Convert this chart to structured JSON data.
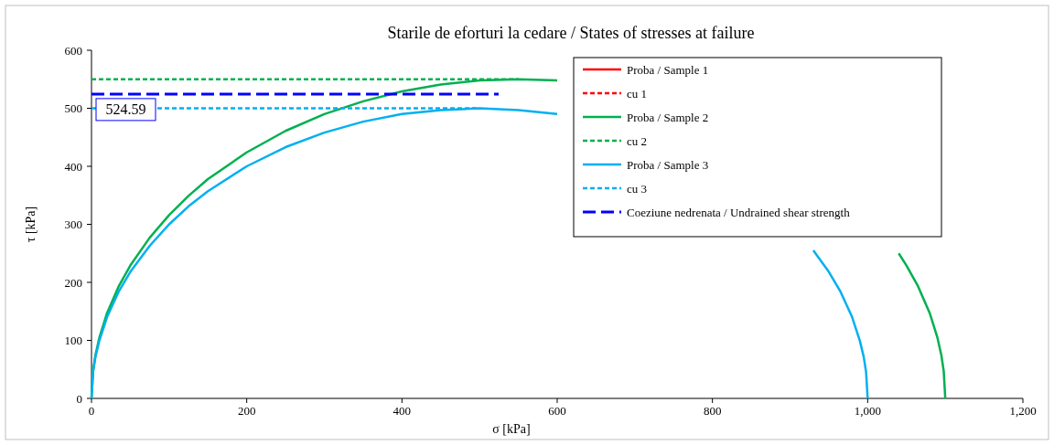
{
  "chart_data": {
    "type": "line",
    "title": "Starile de eforturi la cedare / States of stresses at failure",
    "xlabel": "σ [kPa]",
    "ylabel": "τ [kPa]",
    "xlim": [
      0,
      1200
    ],
    "xticks": [
      0,
      200,
      400,
      600,
      800,
      {
        "value": 1000,
        "label": "1,000"
      },
      {
        "value": 1200,
        "label": "1,200"
      }
    ],
    "ylim": [
      0,
      600
    ],
    "yticks": [
      0,
      100,
      200,
      300,
      400,
      500,
      600
    ],
    "grid": false,
    "legend": "top right",
    "series": [
      {
        "name": "Proba / Sample 1",
        "color": "#ff0000",
        "line_style": "solid"
      },
      {
        "name": "cu 1",
        "color": "#ff0000",
        "line_style": "dashed"
      },
      {
        "name": "Proba / Sample 2",
        "color": "#00b050",
        "line_style": "solid",
        "x": [
          0,
          2,
          5,
          10,
          20,
          35,
          50,
          75,
          100,
          125,
          150,
          200,
          250,
          300,
          350,
          400,
          450,
          500,
          550,
          600,
          700,
          1040,
          1050,
          1065,
          1080,
          1090,
          1095,
          1098,
          1100
        ],
        "values": [
          0,
          47,
          74,
          104,
          147,
          193,
          229,
          277,
          316,
          349,
          378,
          424,
          461,
          490,
          512,
          529,
          541,
          548,
          550,
          548,
          null,
          250,
          229,
          193,
          147,
          104,
          74,
          47,
          0
        ]
      },
      {
        "name": "cu 2",
        "color": "#00b050",
        "line_style": "dashed",
        "x": [
          0,
          550
        ],
        "values": [
          550,
          550
        ]
      },
      {
        "name": "Proba / Sample 3",
        "color": "#00b0f0",
        "line_style": "solid",
        "x": [
          0,
          2,
          5,
          10,
          20,
          35,
          50,
          75,
          100,
          125,
          150,
          200,
          250,
          300,
          350,
          400,
          450,
          500,
          550,
          600,
          700,
          930,
          950,
          965,
          980,
          990,
          995,
          998,
          1000
        ],
        "values": [
          0,
          45,
          71,
          99,
          140,
          184,
          218,
          263,
          300,
          331,
          357,
          400,
          433,
          458,
          477,
          490,
          497,
          500,
          497,
          490,
          null,
          255,
          218,
          184,
          140,
          99,
          71,
          45,
          0
        ]
      },
      {
        "name": "cu 3",
        "color": "#00b0f0",
        "line_style": "dashed",
        "x": [
          0,
          500
        ],
        "values": [
          500,
          500
        ]
      },
      {
        "name": "Coeziune nedrenata / Undrained shear strength",
        "color": "#0000ff",
        "line_style": "dashed",
        "x": [
          0,
          524.59
        ],
        "values": [
          524.59,
          524.59
        ]
      }
    ],
    "annotations": [
      {
        "text": "524.59",
        "x": 0,
        "y": 524.59
      }
    ]
  }
}
